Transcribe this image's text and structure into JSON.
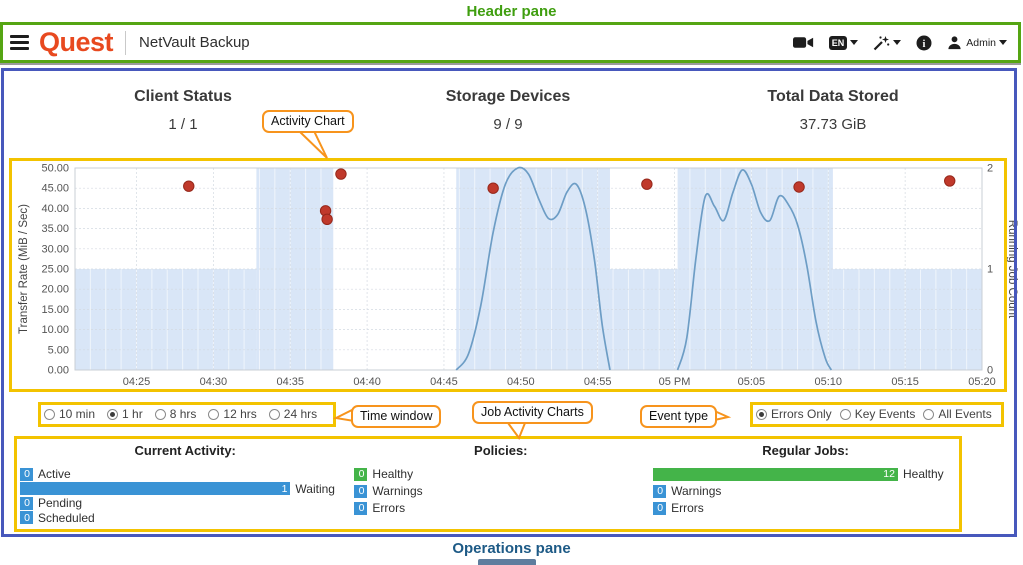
{
  "annotations": {
    "header_pane_label": "Header pane",
    "operations_pane_label": "Operations pane",
    "callouts": {
      "activity_chart": "Activity Chart",
      "time_window": "Time window",
      "job_activity_charts": "Job Activity Charts",
      "event_type": "Event type"
    },
    "colors": {
      "highlight_green": "#55a513",
      "highlight_blue": "#4758bc",
      "highlight_yellow": "#f3c300",
      "callout_orange": "#f7941d"
    }
  },
  "header": {
    "brand": "Quest",
    "app_title": "NetVault Backup",
    "language_badge": "EN",
    "user_name": "Admin"
  },
  "stats": {
    "client_status": {
      "label": "Client Status",
      "value": "1 / 1"
    },
    "storage_devices": {
      "label": "Storage Devices",
      "value": "9 / 9"
    },
    "total_data": {
      "label": "Total Data Stored",
      "value": "37.73 GiB"
    }
  },
  "time_window": {
    "options": [
      {
        "label": "10 min",
        "selected": false
      },
      {
        "label": "1 hr",
        "selected": true
      },
      {
        "label": "8 hrs",
        "selected": false
      },
      {
        "label": "12 hrs",
        "selected": false
      },
      {
        "label": "24 hrs",
        "selected": false
      }
    ]
  },
  "event_type": {
    "options": [
      {
        "label": "Errors Only",
        "selected": true
      },
      {
        "label": "Key Events",
        "selected": false
      },
      {
        "label": "All Events",
        "selected": false
      }
    ]
  },
  "chart_data": {
    "type": "line",
    "title": "Activity Chart",
    "x_unit": "time of day (minutes after 04:20)",
    "x_domain": [
      1,
      60
    ],
    "x_ticks": [
      {
        "t": 5,
        "label": "04:25"
      },
      {
        "t": 10,
        "label": "04:30"
      },
      {
        "t": 15,
        "label": "04:35"
      },
      {
        "t": 20,
        "label": "04:40"
      },
      {
        "t": 25,
        "label": "04:45"
      },
      {
        "t": 30,
        "label": "04:50"
      },
      {
        "t": 35,
        "label": "04:55"
      },
      {
        "t": 40,
        "label": "05 PM"
      },
      {
        "t": 45,
        "label": "05:05"
      },
      {
        "t": 50,
        "label": "05:10"
      },
      {
        "t": 55,
        "label": "05:15"
      },
      {
        "t": 60,
        "label": "05:20"
      }
    ],
    "y_left": {
      "label": "Transfer Rate (MiB / Sec)",
      "min": 0,
      "max": 50,
      "tick_step": 5,
      "tick_labels": [
        "0.00",
        "5.00",
        "10.00",
        "15.00",
        "20.00",
        "25.00",
        "30.00",
        "35.00",
        "40.00",
        "45.00",
        "50.00"
      ]
    },
    "y_right": {
      "label": "Running Job Count",
      "min": 0,
      "max": 2,
      "tick_labels": [
        "0",
        "1",
        "2"
      ]
    },
    "series": [
      {
        "name": "Running Job Count",
        "type": "area",
        "axis": "right",
        "segments": [
          {
            "from": 1,
            "to": 12.8,
            "count": 1
          },
          {
            "from": 12.8,
            "to": 17.8,
            "count": 2
          },
          {
            "from": 17.8,
            "to": 25.8,
            "count": 0
          },
          {
            "from": 25.8,
            "to": 35.8,
            "count": 2
          },
          {
            "from": 35.8,
            "to": 40.2,
            "count": 1
          },
          {
            "from": 40.2,
            "to": 50.3,
            "count": 2
          },
          {
            "from": 50.3,
            "to": 60,
            "count": 1
          }
        ]
      },
      {
        "name": "Transfer Rate",
        "type": "line",
        "axis": "left",
        "polylines": [
          [
            [
              25.8,
              0
            ],
            [
              26.6,
              4
            ],
            [
              27.4,
              16
            ],
            [
              28.2,
              34
            ],
            [
              29,
              46
            ],
            [
              29.8,
              50
            ],
            [
              30.5,
              48.5
            ],
            [
              31.2,
              42
            ],
            [
              31.8,
              37.5
            ],
            [
              32.4,
              38.5
            ],
            [
              33,
              44
            ],
            [
              33.6,
              46
            ],
            [
              34.2,
              40
            ],
            [
              34.8,
              27
            ],
            [
              35.3,
              11
            ],
            [
              35.8,
              0
            ]
          ],
          [
            [
              40.2,
              0
            ],
            [
              40.8,
              8
            ],
            [
              41.4,
              28
            ],
            [
              42,
              43
            ],
            [
              42.6,
              40.5
            ],
            [
              43.2,
              37
            ],
            [
              43.8,
              44
            ],
            [
              44.4,
              49.5
            ],
            [
              45,
              46
            ],
            [
              45.6,
              39
            ],
            [
              46.2,
              37
            ],
            [
              46.8,
              43
            ],
            [
              47.4,
              41
            ],
            [
              48,
              36
            ],
            [
              48.6,
              26
            ],
            [
              49.2,
              12
            ],
            [
              49.8,
              3
            ],
            [
              50.2,
              0
            ]
          ]
        ]
      },
      {
        "name": "Error Events",
        "type": "scatter",
        "axis": "left",
        "points": [
          [
            8.4,
            45.5
          ],
          [
            17.3,
            39.4
          ],
          [
            17.4,
            37.3
          ],
          [
            18.3,
            48.5
          ],
          [
            28.2,
            45
          ],
          [
            38.2,
            46
          ],
          [
            48.1,
            45.3
          ],
          [
            57.9,
            46.8
          ]
        ]
      }
    ]
  },
  "activity_summary": {
    "groups": [
      {
        "title": "Current Activity:",
        "rows": [
          {
            "value": 0,
            "label": "Active",
            "color": "#3a93d5",
            "wide": false
          },
          {
            "value": 1,
            "label": "Waiting",
            "color": "#3a93d5",
            "wide": true
          },
          {
            "value": 0,
            "label": "Pending",
            "color": "#3a93d5",
            "wide": false
          },
          {
            "value": 0,
            "label": "Scheduled",
            "color": "#3a93d5",
            "wide": false
          }
        ]
      },
      {
        "title": "Policies:",
        "rows": [
          {
            "value": 0,
            "label": "Healthy",
            "color": "#44b449",
            "wide": false
          },
          {
            "value": 0,
            "label": "Warnings",
            "color": "#3a93d5",
            "wide": false
          },
          {
            "value": 0,
            "label": "Errors",
            "color": "#3a93d5",
            "wide": false
          }
        ]
      },
      {
        "title": "Regular Jobs:",
        "rows": [
          {
            "value": 12,
            "label": "Healthy",
            "color": "#44b449",
            "wide": true
          },
          {
            "value": 0,
            "label": "Warnings",
            "color": "#3a93d5",
            "wide": false
          },
          {
            "value": 0,
            "label": "Errors",
            "color": "#3a93d5",
            "wide": false
          }
        ]
      }
    ]
  }
}
